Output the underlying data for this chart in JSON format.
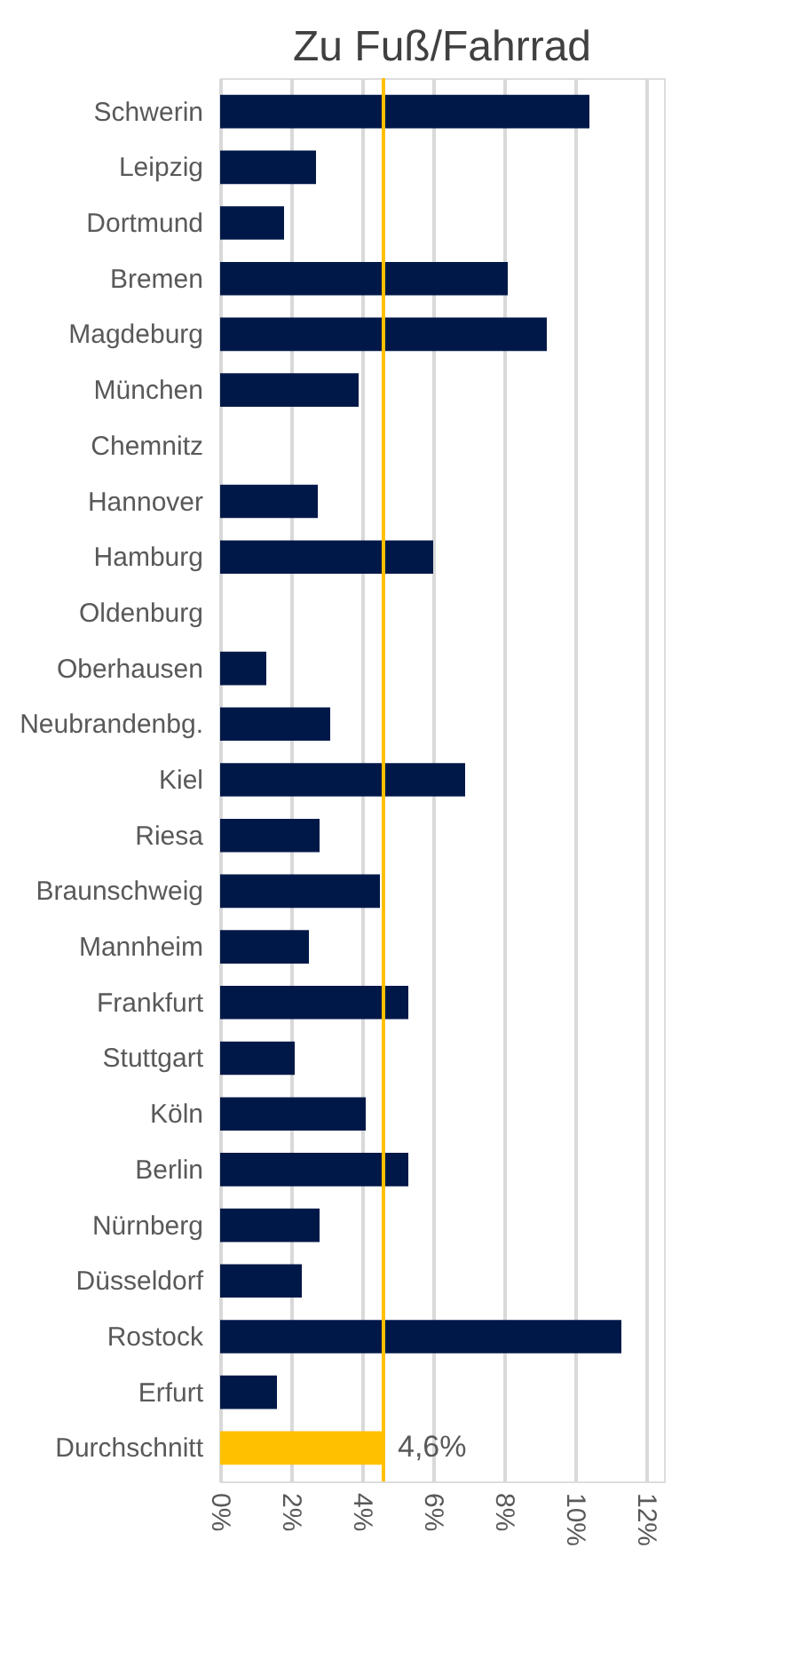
{
  "chart_data": {
    "type": "bar",
    "orientation": "horizontal",
    "title": "Zu Fuß/Fahrrad",
    "categories": [
      "Schwerin",
      "Leipzig",
      "Dortmund",
      "Bremen",
      "Magdeburg",
      "München",
      "Chemnitz",
      "Hannover",
      "Hamburg",
      "Oldenburg",
      "Oberhausen",
      "Neubrandenbg.",
      "Kiel",
      "Riesa",
      "Braunschweig",
      "Mannheim",
      "Frankfurt",
      "Stuttgart",
      "Köln",
      "Berlin",
      "Nürnberg",
      "Düsseldorf",
      "Rostock",
      "Erfurt",
      "Durchschnitt"
    ],
    "values": [
      10.4,
      2.7,
      1.8,
      8.1,
      9.2,
      3.9,
      null,
      2.75,
      6.0,
      null,
      1.3,
      3.1,
      6.9,
      2.8,
      4.5,
      2.5,
      5.3,
      2.1,
      4.1,
      5.3,
      2.8,
      2.3,
      11.3,
      1.6,
      4.6
    ],
    "colors": [
      "#001848",
      "#001848",
      "#001848",
      "#001848",
      "#001848",
      "#001848",
      "#001848",
      "#001848",
      "#001848",
      "#001848",
      "#001848",
      "#001848",
      "#001848",
      "#001848",
      "#001848",
      "#001848",
      "#001848",
      "#001848",
      "#001848",
      "#001848",
      "#001848",
      "#001848",
      "#001848",
      "#001848",
      "#ffc000"
    ],
    "value_labels": [
      null,
      null,
      null,
      null,
      null,
      null,
      null,
      null,
      null,
      null,
      null,
      null,
      null,
      null,
      null,
      null,
      null,
      null,
      null,
      null,
      null,
      null,
      null,
      null,
      "4,6%"
    ],
    "xlim": [
      0,
      12.5
    ],
    "xticks": [
      {
        "value": 0,
        "label": "0%"
      },
      {
        "value": 2,
        "label": "2%"
      },
      {
        "value": 4,
        "label": "4%"
      },
      {
        "value": 6,
        "label": "6%"
      },
      {
        "value": 8,
        "label": "8%"
      },
      {
        "value": 10,
        "label": "10%"
      },
      {
        "value": 12,
        "label": "12%"
      }
    ],
    "ref_lines": [
      {
        "axis": "x",
        "value": 4.6,
        "label": null,
        "color": "#ffc000"
      }
    ],
    "grid": "x"
  }
}
